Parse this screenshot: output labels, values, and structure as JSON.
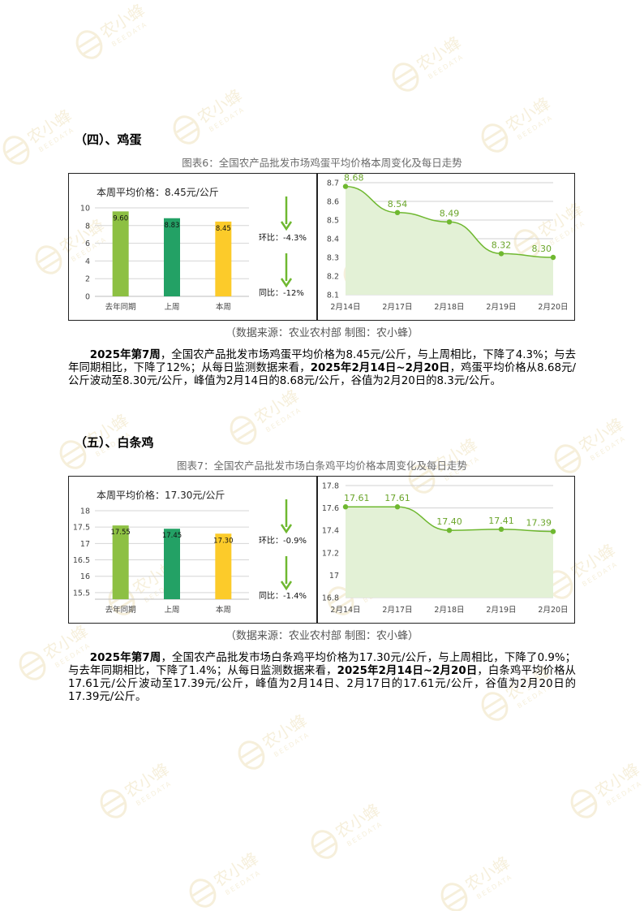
{
  "watermark": {
    "brand": "农小蜂",
    "brand_en": "BEEDATA"
  },
  "sections": [
    {
      "heading": "（四）、鸡蛋",
      "caption": "图表6：全国农产品批发市场鸡蛋平均价格本周变化及每日走势",
      "source": "（数据来源：农业农村部    制图：农小蜂）",
      "paragraph_html": "<b>2025年第7周</b>，全国农产品批发市场鸡蛋平均价格为8.45元/公斤，与上周相比，下降了4.3%；与去年同期相比，下降了12%；从每日监测数据来看，<b>2025年2月14日~2月20日</b>，鸡蛋平均价格从8.68元/公斤波动至8.30元/公斤，峰值为2月14日的8.68元/公斤，谷值为2月20日的8.3元/公斤。",
      "paragraph": "2025年第7周，全国农产品批发市场鸡蛋平均价格为8.45元/公斤，与上周相比，下降了4.3%；与去年同期相比，下降了12%；从每日监测数据来看，2025年2月14日~2月20日，鸡蛋平均价格从8.68元/公斤波动至8.30元/公斤，峰值为2月14日的8.68元/公斤，谷值为2月20日的8.3元/公斤。",
      "avg_label": "本周平均价格：8.45元/公斤",
      "chain_label": "环比：-4.3%",
      "yoy_label": "同比：-12%",
      "chart_data": [
        {
          "type": "bar",
          "categories": [
            "去年同期",
            "上周",
            "本周"
          ],
          "values": [
            9.6,
            8.83,
            8.45
          ],
          "value_labels": [
            "9.60",
            "8.83",
            "8.45"
          ],
          "colors": [
            "#8dc043",
            "#23a165",
            "#fccb2a"
          ],
          "ylim": [
            0,
            10
          ],
          "yticks": [
            0,
            2,
            4,
            6,
            8,
            10
          ],
          "ytick_labels": [
            "0",
            "2",
            "4",
            "6",
            "8",
            "10"
          ],
          "grid": true
        },
        {
          "type": "area",
          "categories": [
            "2月14日",
            "2月17日",
            "2月18日",
            "2月19日",
            "2月20日"
          ],
          "values": [
            8.68,
            8.54,
            8.49,
            8.32,
            8.3
          ],
          "value_labels": [
            "8.68",
            "8.54",
            "8.49",
            "8.32",
            "8.30"
          ],
          "ylim": [
            8.1,
            8.7
          ],
          "yticks": [
            8.1,
            8.2,
            8.3,
            8.4,
            8.5,
            8.6,
            8.7
          ],
          "ytick_labels": [
            "8.1",
            "8.2",
            "8.3",
            "8.4",
            "8.5",
            "8.6",
            "8.7"
          ],
          "grid": true,
          "line_color": "#6fb830",
          "fill_color": "#e3f1d6"
        }
      ]
    },
    {
      "heading": "（五）、白条鸡",
      "caption": "图表7：全国农产品批发市场白条鸡平均价格本周变化及每日走势",
      "source": "（数据来源：农业农村部    制图：农小蜂）",
      "paragraph_html": "<b>2025年第7周</b>，全国农产品批发市场白条鸡平均价格为17.30元/公斤，与上周相比，下降了0.9%；与去年同期相比，下降了1.4%；从每日监测数据来看，<b>2025年2月14日~2月20日</b>，白条鸡平均价格从17.61元/公斤波动至17.39元/公斤，峰值为2月14日、2月17日的17.61元/公斤，谷值为2月20日的17.39元/公斤。",
      "paragraph": "2025年第7周，全国农产品批发市场白条鸡平均价格为17.30元/公斤，与上周相比，下降了0.9%；与去年同期相比，下降了1.4%；从每日监测数据来看，2025年2月14日~2月20日，白条鸡平均价格从17.61元/公斤波动至17.39元/公斤，峰值为2月14日、2月17日的17.61元/公斤，谷值为2月20日的17.39元/公斤。",
      "avg_label": "本周平均价格：17.30元/公斤",
      "chain_label": "环比：-0.9%",
      "yoy_label": "同比：-1.4%",
      "chart_data": [
        {
          "type": "bar",
          "categories": [
            "去年同期",
            "上周",
            "本周"
          ],
          "values": [
            17.55,
            17.45,
            17.3
          ],
          "value_labels": [
            "17.55",
            "17.45",
            "17.30"
          ],
          "colors": [
            "#8dc043",
            "#23a165",
            "#fccb2a"
          ],
          "ylim": [
            15.3,
            18
          ],
          "yticks": [
            15.5,
            16,
            16.5,
            17,
            17.5,
            18
          ],
          "ytick_labels": [
            "15.5",
            "16",
            "16.5",
            "17",
            "17.5",
            "18"
          ],
          "grid": true
        },
        {
          "type": "area",
          "categories": [
            "2月14日",
            "2月17日",
            "2月18日",
            "2月19日",
            "2月20日"
          ],
          "values": [
            17.61,
            17.61,
            17.4,
            17.41,
            17.39
          ],
          "value_labels": [
            "17.61",
            "17.61",
            "17.40",
            "17.41",
            "17.39"
          ],
          "ylim": [
            16.8,
            17.8
          ],
          "yticks": [
            16.8,
            17,
            17.2,
            17.4,
            17.6,
            17.8
          ],
          "ytick_labels": [
            "16.8",
            "17",
            "17.2",
            "17.4",
            "17.6",
            "17.8"
          ],
          "grid": true,
          "line_color": "#6fb830",
          "fill_color": "#e3f1d6"
        }
      ]
    }
  ]
}
